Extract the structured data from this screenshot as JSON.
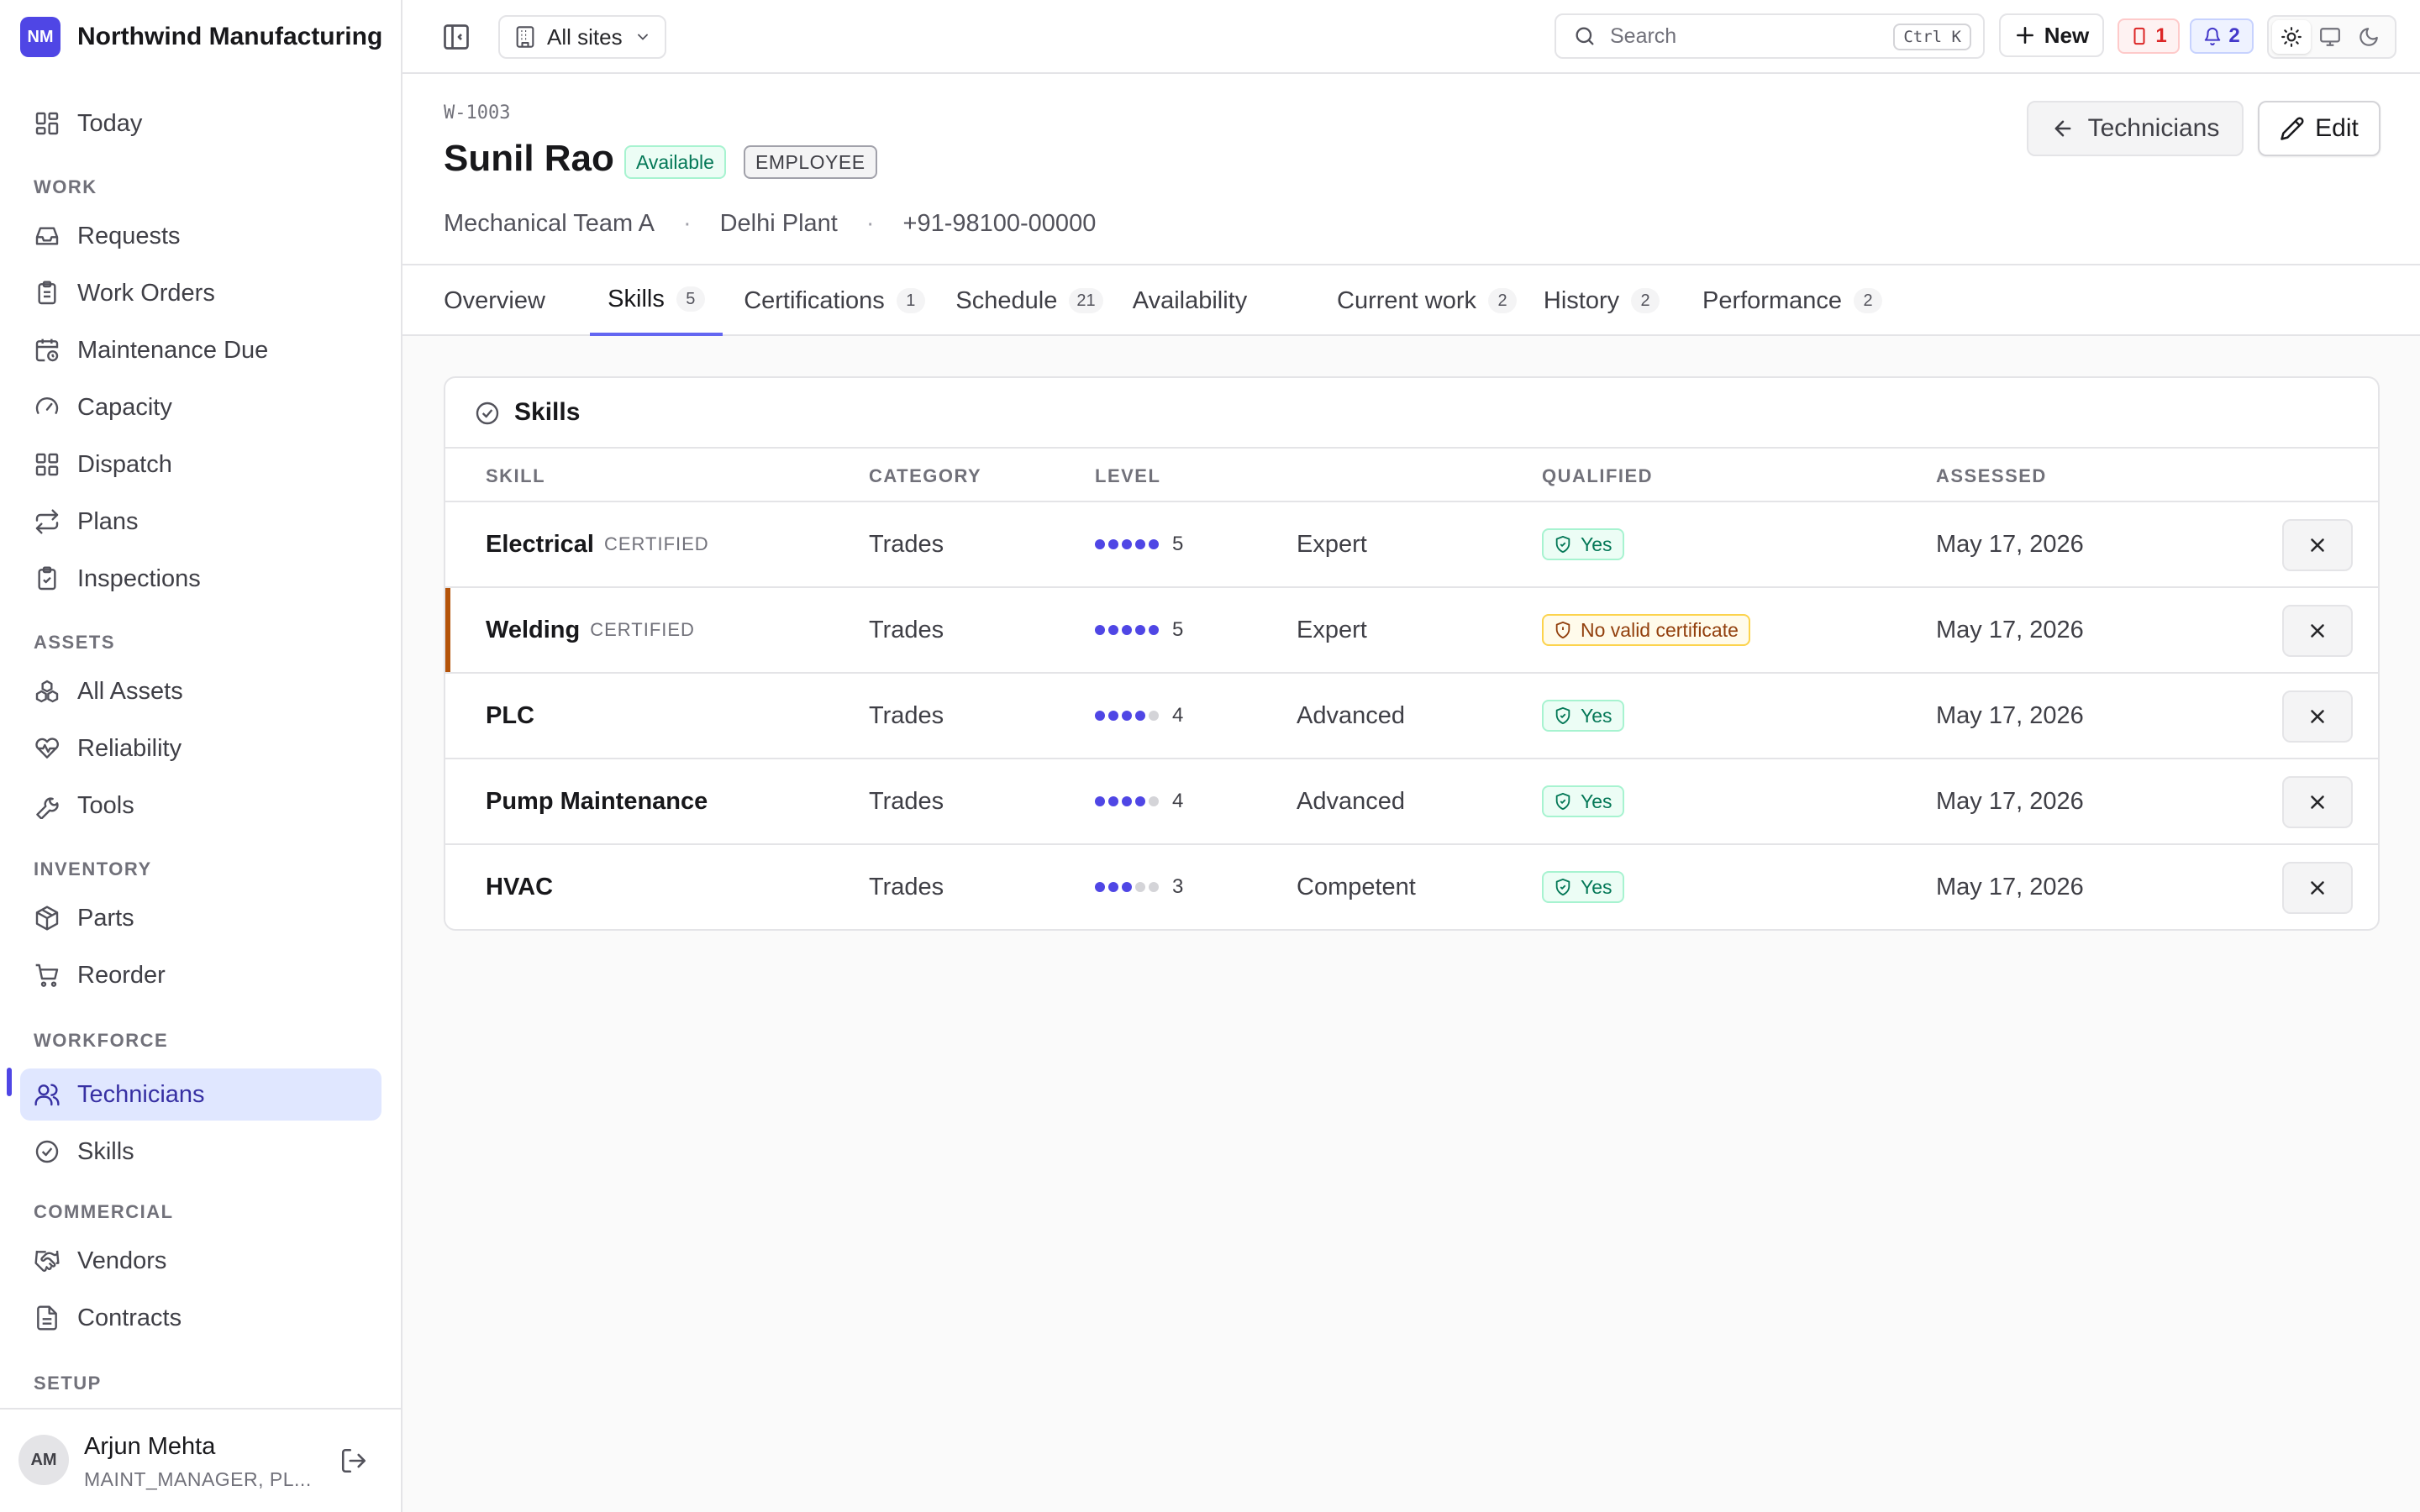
{
  "app": {
    "logo": "NM",
    "name": "Northwind Manufacturing"
  },
  "sidebar": {
    "top_item": {
      "label": "Today",
      "icon": "dashboard-icon"
    },
    "sections": [
      {
        "title": "WORK",
        "items": [
          {
            "label": "Requests",
            "icon": "inbox-icon"
          },
          {
            "label": "Work Orders",
            "icon": "clipboard-icon"
          },
          {
            "label": "Maintenance Due",
            "icon": "calendar-clock-icon"
          },
          {
            "label": "Capacity",
            "icon": "gauge-icon"
          },
          {
            "label": "Dispatch",
            "icon": "grid-icon"
          },
          {
            "label": "Plans",
            "icon": "repeat-icon"
          },
          {
            "label": "Inspections",
            "icon": "clipboard-check-icon"
          }
        ]
      },
      {
        "title": "ASSETS",
        "items": [
          {
            "label": "All Assets",
            "icon": "boxes-icon"
          },
          {
            "label": "Reliability",
            "icon": "heart-pulse-icon"
          },
          {
            "label": "Tools",
            "icon": "wrench-icon"
          }
        ]
      },
      {
        "title": "INVENTORY",
        "items": [
          {
            "label": "Parts",
            "icon": "package-icon"
          },
          {
            "label": "Reorder",
            "icon": "cart-icon"
          }
        ]
      },
      {
        "title": "WORKFORCE",
        "items": [
          {
            "label": "Technicians",
            "icon": "users-icon",
            "active": true
          },
          {
            "label": "Skills",
            "icon": "badge-check-icon"
          }
        ]
      },
      {
        "title": "COMMERCIAL",
        "items": [
          {
            "label": "Vendors",
            "icon": "handshake-icon"
          },
          {
            "label": "Contracts",
            "icon": "file-text-icon"
          }
        ]
      },
      {
        "title": "SETUP",
        "items": []
      }
    ],
    "user": {
      "initials": "AM",
      "name": "Arjun Mehta",
      "role": "MAINT_MANAGER, PL..."
    }
  },
  "topbar": {
    "site_select": "All sites",
    "search_placeholder": "Search",
    "shortcut": "Ctrl K",
    "new_label": "New",
    "alerts_count": "1",
    "notifications_count": "2"
  },
  "header": {
    "code": "W-1003",
    "name": "Sunil Rao",
    "status": "Available",
    "type": "EMPLOYEE",
    "team": "Mechanical Team A",
    "plant": "Delhi Plant",
    "phone": "+91-98100-00000",
    "back_label": "Technicians",
    "edit_label": "Edit",
    "separator": "·"
  },
  "tabs": [
    {
      "label": "Overview",
      "count": null
    },
    {
      "label": "Skills",
      "count": "5",
      "active": true
    },
    {
      "label": "Certifications",
      "count": "1"
    },
    {
      "label": "Schedule",
      "count": "21"
    },
    {
      "label": "Availability",
      "count": null
    },
    {
      "label": "Current work",
      "count": "2"
    },
    {
      "label": "History",
      "count": "2"
    },
    {
      "label": "Performance",
      "count": "2"
    }
  ],
  "skills_card": {
    "title": "Skills",
    "columns": {
      "skill": "SKILL",
      "category": "CATEGORY",
      "level": "LEVEL",
      "qualified": "QUALIFIED",
      "assessed": "ASSESSED"
    },
    "rows": [
      {
        "skill": "Electrical",
        "tag": "CERTIFIED",
        "category": "Trades",
        "level": 5,
        "level_text": "5",
        "level_name": "Expert",
        "qualified": "Yes",
        "qualified_ok": true,
        "assessed": "May 17, 2026"
      },
      {
        "skill": "Welding",
        "tag": "CERTIFIED",
        "category": "Trades",
        "level": 5,
        "level_text": "5",
        "level_name": "Expert",
        "qualified": "No valid certificate",
        "qualified_ok": false,
        "assessed": "May 17, 2026"
      },
      {
        "skill": "PLC",
        "tag": "",
        "category": "Trades",
        "level": 4,
        "level_text": "4",
        "level_name": "Advanced",
        "qualified": "Yes",
        "qualified_ok": true,
        "assessed": "May 17, 2026"
      },
      {
        "skill": "Pump Maintenance",
        "tag": "",
        "category": "Trades",
        "level": 4,
        "level_text": "4",
        "level_name": "Advanced",
        "qualified": "Yes",
        "qualified_ok": true,
        "assessed": "May 17, 2026"
      },
      {
        "skill": "HVAC",
        "tag": "",
        "category": "Trades",
        "level": 3,
        "level_text": "3",
        "level_name": "Competent",
        "qualified": "Yes",
        "qualified_ok": true,
        "assessed": "May 17, 2026"
      }
    ],
    "level_max": 5
  },
  "colors": {
    "accent": "#4f46e5",
    "success": "#047857",
    "warning": "#b45309",
    "danger": "#dc2626"
  }
}
